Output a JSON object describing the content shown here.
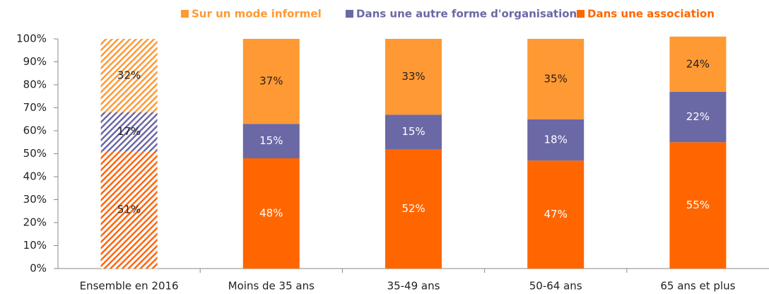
{
  "chart_data": {
    "type": "stacked_bar",
    "categories": [
      "Ensemble en 2016",
      "Moins de 35 ans",
      "35-49 ans",
      "50-64 ans",
      "65 ans et plus"
    ],
    "hatch": [
      true,
      false,
      false,
      false,
      false
    ],
    "series": [
      {
        "name": "Sur un mode informel",
        "color": "#ff9933",
        "values": [
          32,
          37,
          33,
          35,
          24
        ],
        "value_labels": [
          "32%",
          "37%",
          "33%",
          "35%",
          "24%"
        ]
      },
      {
        "name": "Dans une autre forme d'organisation",
        "color": "#6b68a6",
        "values": [
          17,
          15,
          15,
          18,
          22
        ],
        "value_labels": [
          "17%",
          "15%",
          "15%",
          "18%",
          "22%"
        ]
      },
      {
        "name": "Dans une association",
        "color": "#ff6600",
        "values": [
          51,
          48,
          52,
          47,
          55
        ],
        "value_labels": [
          "51%",
          "48%",
          "52%",
          "47%",
          "55%"
        ]
      }
    ],
    "ylim": [
      0,
      100
    ],
    "yticks": [
      {
        "value": 0,
        "label": "0%"
      },
      {
        "value": 10,
        "label": "10%"
      },
      {
        "value": 20,
        "label": "20%"
      },
      {
        "value": 30,
        "label": "30%"
      },
      {
        "value": 40,
        "label": "40%"
      },
      {
        "value": 50,
        "label": "50%"
      },
      {
        "value": 60,
        "label": "60%"
      },
      {
        "value": 70,
        "label": "70%"
      },
      {
        "value": 80,
        "label": "80%"
      },
      {
        "value": 90,
        "label": "90%"
      },
      {
        "value": 100,
        "label": "100%"
      }
    ],
    "legend": "top"
  }
}
